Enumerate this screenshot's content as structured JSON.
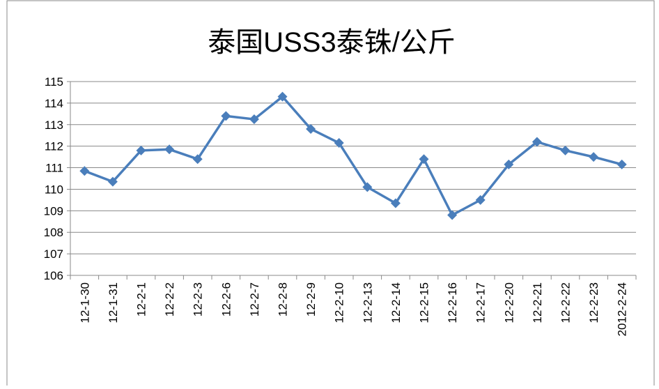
{
  "chart_data": {
    "type": "line",
    "title": "泰国USS3泰铢/公斤",
    "categories": [
      "12-1-30",
      "12-1-31",
      "12-2-1",
      "12-2-2",
      "12-2-3",
      "12-2-6",
      "12-2-7",
      "12-2-8",
      "12-2-9",
      "12-2-10",
      "12-2-13",
      "12-2-14",
      "12-2-15",
      "12-2-16",
      "12-2-17",
      "12-2-20",
      "12-2-21",
      "12-2-22",
      "12-2-23",
      "2012-2-24"
    ],
    "series": [
      {
        "name": "泰国USS3泰铢/公斤",
        "color": "#4a7ebb",
        "values": [
          110.85,
          110.35,
          111.8,
          111.85,
          111.4,
          113.4,
          113.25,
          114.3,
          112.8,
          112.15,
          110.1,
          109.35,
          111.4,
          108.8,
          109.5,
          111.15,
          112.2,
          111.8,
          111.5,
          111.15
        ]
      }
    ],
    "ylim": [
      106,
      115
    ],
    "yticks": [
      106,
      107,
      108,
      109,
      110,
      111,
      112,
      113,
      114,
      115
    ],
    "grid": true
  }
}
